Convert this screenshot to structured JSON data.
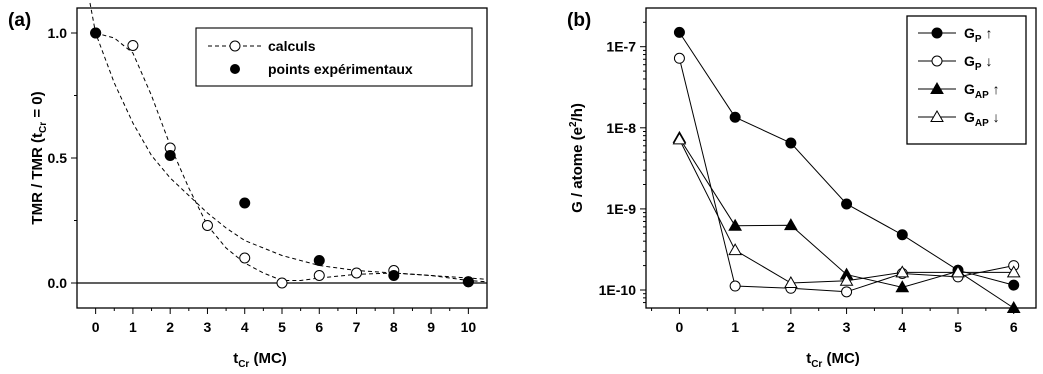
{
  "chart_data": [
    {
      "panel_label": "(a)",
      "type": "scatter",
      "xlabel": {
        "main": "t",
        "sub": "Cr",
        "rest": " (MC)"
      },
      "ylabel": {
        "main": "TMR / TMR (t",
        "sub": "Cr",
        "rest": " = 0)"
      },
      "xlim": [
        -0.5,
        10.5
      ],
      "ylim": [
        -0.1,
        1.1
      ],
      "xticks": [
        "0",
        "1",
        "2",
        "3",
        "4",
        "5",
        "6",
        "7",
        "8",
        "9",
        "10"
      ],
      "yticks": [
        "0.0",
        "0.5",
        "1.0"
      ],
      "series": [
        {
          "name": "calculs",
          "marker": "open-circle",
          "x": [
            0,
            1,
            2,
            3,
            4,
            5,
            6,
            7,
            8,
            10
          ],
          "y": [
            1.0,
            0.95,
            0.54,
            0.23,
            0.1,
            0.0,
            0.03,
            0.04,
            0.05,
            0.005
          ]
        },
        {
          "name": "points expérimentaux",
          "marker": "filled-circle",
          "x": [
            0,
            2,
            4,
            6,
            8,
            10
          ],
          "y": [
            1.0,
            0.51,
            0.32,
            0.09,
            0.03,
            0.005
          ]
        }
      ],
      "dashed_curves": [
        {
          "x": [
            0,
            0.5,
            1,
            1.5,
            2,
            2.5,
            3,
            3.5,
            4,
            4.5,
            5,
            5.5,
            6,
            7,
            8,
            9,
            10,
            10.5
          ],
          "y": [
            1.0,
            0.98,
            0.92,
            0.75,
            0.55,
            0.38,
            0.23,
            0.14,
            0.08,
            0.04,
            0.01,
            0.01,
            0.02,
            0.035,
            0.04,
            0.03,
            0.01,
            0.005
          ]
        },
        {
          "x": [
            -0.15,
            0,
            0.5,
            1,
            1.5,
            2,
            2.5,
            3,
            3.5,
            4,
            5,
            6,
            7,
            8,
            9,
            10,
            10.5
          ],
          "y": [
            1.12,
            1.0,
            0.8,
            0.64,
            0.51,
            0.42,
            0.35,
            0.28,
            0.22,
            0.17,
            0.11,
            0.07,
            0.05,
            0.04,
            0.03,
            0.02,
            0.015
          ]
        }
      ],
      "zero_line": true,
      "legend_position": "top-right"
    },
    {
      "panel_label": "(b)",
      "type": "line",
      "yscale": "log",
      "xlabel": {
        "main": "t",
        "sub": "Cr",
        "rest": " (MC)"
      },
      "ylabel": {
        "main": "G / atome  (e",
        "sup": "2",
        "rest": "/h)"
      },
      "xlim": [
        -0.6,
        6.4
      ],
      "ylim": [
        6e-11,
        3e-07
      ],
      "xticks": [
        "0",
        "1",
        "2",
        "3",
        "4",
        "5",
        "6"
      ],
      "yticks": [
        {
          "label": "1E-10",
          "value": 1e-10
        },
        {
          "label": "1E-9",
          "value": 1e-09
        },
        {
          "label": "1E-8",
          "value": 1e-08
        },
        {
          "label": "1E-7",
          "value": 1e-07
        }
      ],
      "x": [
        0,
        1,
        2,
        3,
        4,
        5,
        6
      ],
      "series": [
        {
          "name_main": "G",
          "name_sub": "P",
          "name_arrow": "↑",
          "marker": "filled-circle",
          "values": [
            1.5e-07,
            1.35e-08,
            6.5e-09,
            1.15e-09,
            4.8e-10,
            1.75e-10,
            1.15e-10
          ]
        },
        {
          "name_main": "G",
          "name_sub": "P",
          "name_arrow": "↓",
          "marker": "open-circle",
          "values": [
            7.2e-08,
            1.12e-10,
            1.05e-10,
            9.5e-11,
            1.6e-10,
            1.45e-10,
            2e-10
          ]
        },
        {
          "name_main": "G",
          "name_sub": "AP",
          "name_arrow": "↑",
          "marker": "filled-triangle",
          "values": [
            7.5e-09,
            6.2e-10,
            6.3e-10,
            1.55e-10,
            1.08e-10,
            1.7e-10,
            6e-11
          ]
        },
        {
          "name_main": "G",
          "name_sub": "AP",
          "name_arrow": "↓",
          "marker": "open-triangle",
          "values": [
            7.2e-09,
            3.1e-10,
            1.22e-10,
            1.3e-10,
            1.65e-10,
            1.65e-10,
            1.65e-10
          ]
        }
      ],
      "legend_position": "top-right"
    }
  ]
}
